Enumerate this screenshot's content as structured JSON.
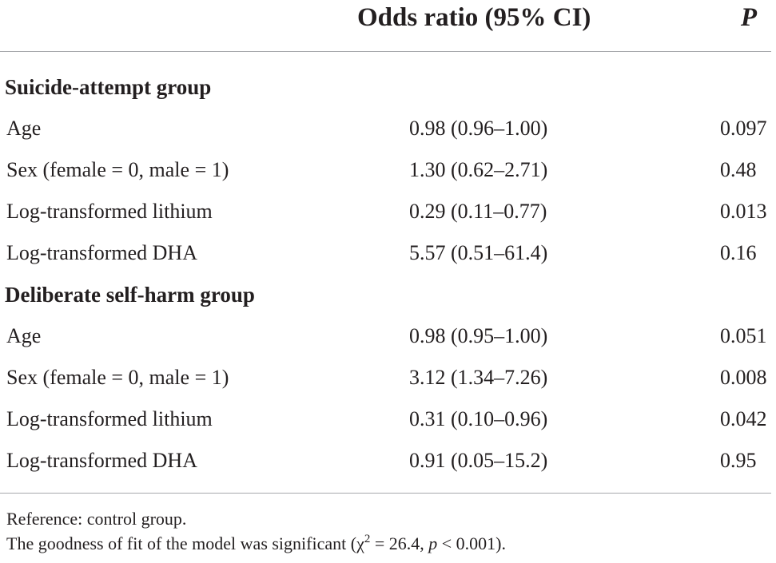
{
  "table": {
    "header": {
      "odds_ratio": "Odds ratio (95% CI)",
      "p": "P"
    },
    "groups": [
      {
        "title": "Suicide-attempt group",
        "rows": [
          {
            "label": "Age",
            "or": "0.98 (0.96–1.00)",
            "p": "0.097"
          },
          {
            "label": "Sex (female = 0, male = 1)",
            "or": "1.30 (0.62–2.71)",
            "p": "0.48"
          },
          {
            "label": "Log-transformed lithium",
            "or": "0.29 (0.11–0.77)",
            "p": "0.013"
          },
          {
            "label": "Log-transformed DHA",
            "or": "5.57 (0.51–61.4)",
            "p": "0.16"
          }
        ]
      },
      {
        "title": "Deliberate self-harm group",
        "rows": [
          {
            "label": "Age",
            "or": "0.98 (0.95–1.00)",
            "p": "0.051"
          },
          {
            "label": "Sex (female = 0, male = 1)",
            "or": "3.12 (1.34–7.26)",
            "p": "0.008"
          },
          {
            "label": "Log-transformed lithium",
            "or": "0.31 (0.10–0.96)",
            "p": "0.042"
          },
          {
            "label": "Log-transformed DHA",
            "or": "0.91 (0.05–15.2)",
            "p": "0.95"
          }
        ]
      }
    ]
  },
  "footnotes": {
    "reference": "Reference: control group.",
    "fit_prefix": "The goodness of fit of the model was significant (",
    "chi": "χ",
    "chi_exp": "2",
    "chi_value": " = 26.4, ",
    "p_symbol": "p",
    "p_value": " < 0.001)."
  }
}
